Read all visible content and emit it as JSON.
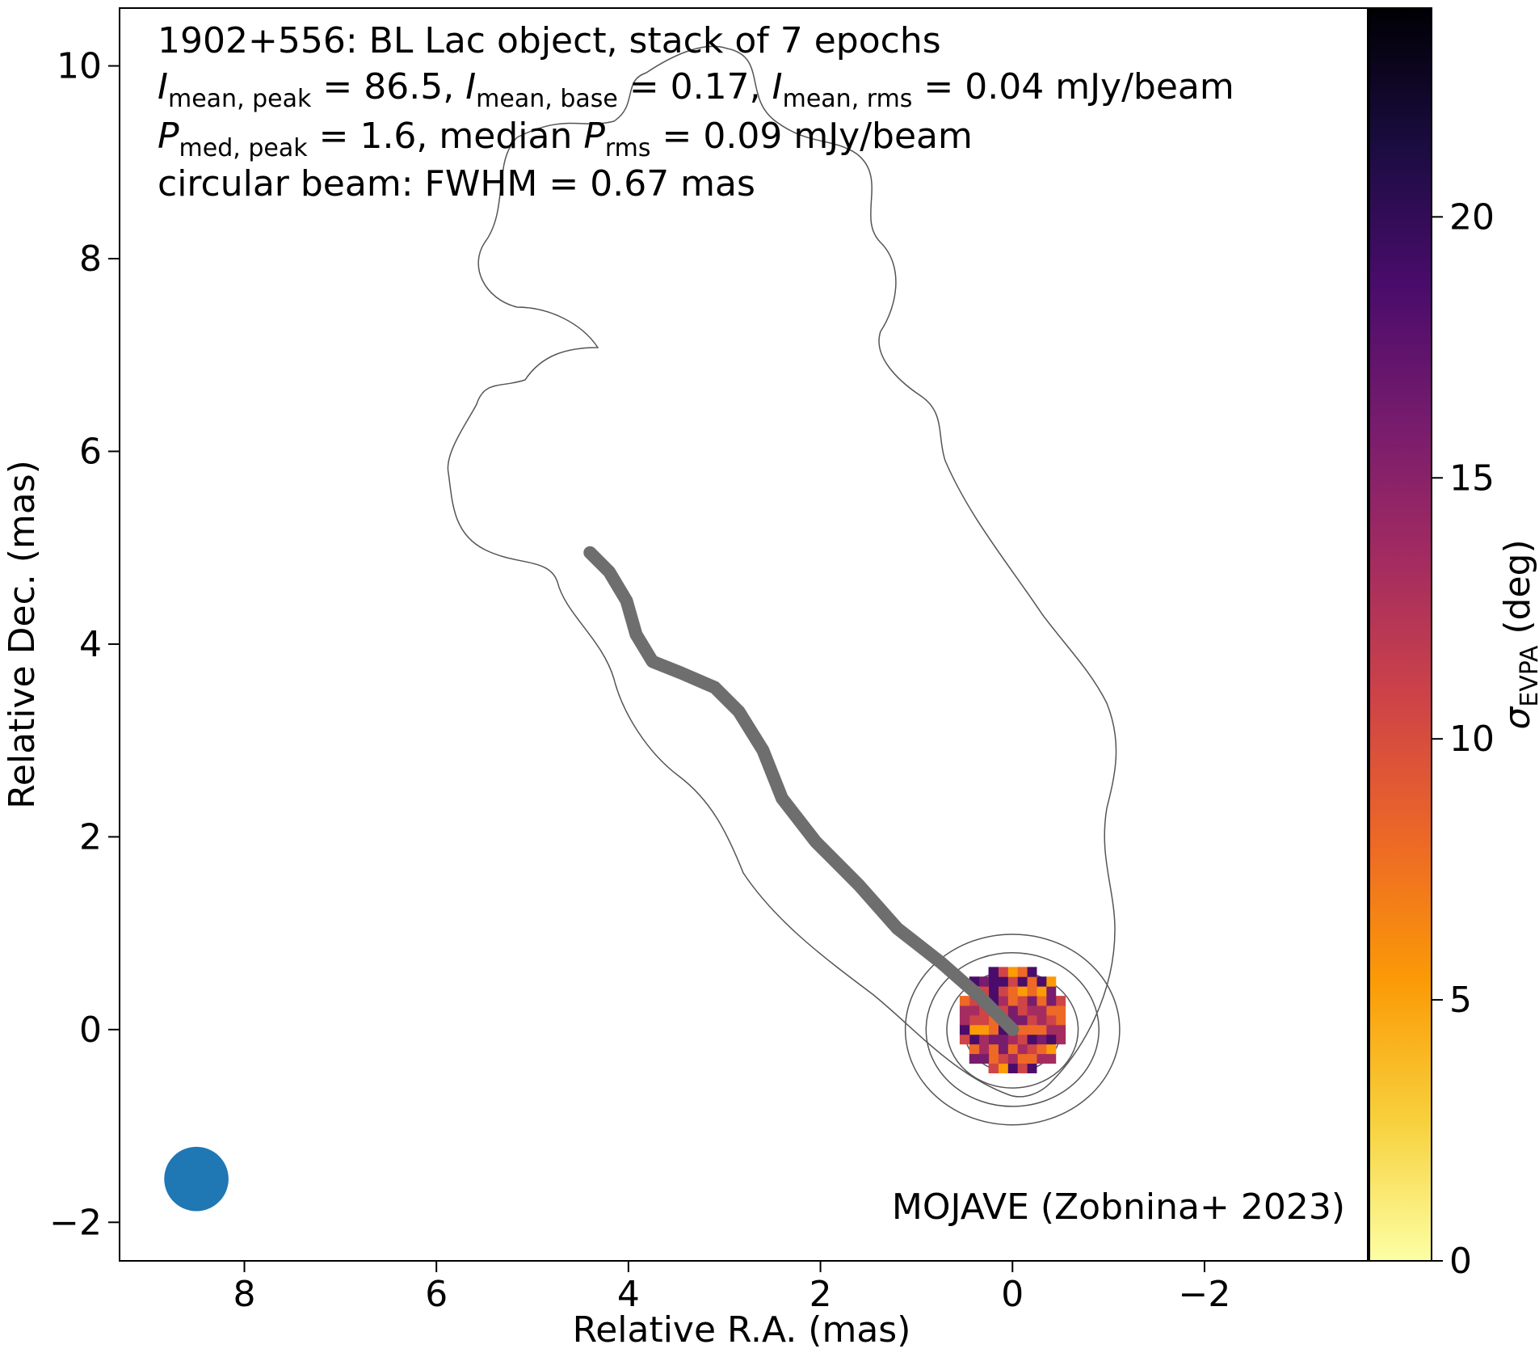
{
  "chart_data": {
    "type": "heatmap",
    "annotations": {
      "line1": "1902+556: BL Lac object, stack of 7 epochs",
      "line2_parts": {
        "I": "I",
        "sub_mean_peak": "mean, peak",
        "eq1": " = 86.5, ",
        "sub_mean_base": "mean, base",
        "eq2": " = 0.17, ",
        "sub_mean_rms": "mean, rms",
        "eq3": " = 0.04 mJy/beam"
      },
      "line3_parts": {
        "P": "P",
        "sub_med_peak": "med, peak",
        "eq1": " = 1.6, median ",
        "sub_rms": "rms",
        "eq2": " = 0.09 mJy/beam"
      },
      "line4": "circular beam: FWHM = 0.67 mas",
      "credit": "MOJAVE (Zobnina+ 2023)"
    },
    "xlabel": "Relative R.A. (mas)",
    "ylabel": "Relative Dec. (mas)",
    "colorbar_label": {
      "sigma": "σ",
      "sub": "EVPA",
      "rest": " (deg)"
    },
    "xlim": [
      9.3,
      -3.7
    ],
    "ylim": [
      -2.4,
      10.6
    ],
    "xticks": [
      8,
      6,
      4,
      2,
      0,
      -2
    ],
    "yticks": [
      -2,
      0,
      2,
      4,
      6,
      8,
      10
    ],
    "xtick_labels": [
      "8",
      "6",
      "4",
      "2",
      "0",
      "−2"
    ],
    "ytick_labels": [
      "−2",
      "0",
      "2",
      "4",
      "6",
      "8",
      "10"
    ],
    "colorbar": {
      "min": 0,
      "max": 24,
      "ticks": [
        0,
        5,
        10,
        15,
        20
      ],
      "tick_labels": [
        "0",
        "5",
        "10",
        "15",
        "20"
      ],
      "colormap": "inferno_r",
      "colormap_stops": [
        "#fcffa4",
        "#f7d13d",
        "#fb9b06",
        "#ed6925",
        "#cf4446",
        "#a52c60",
        "#781c6d",
        "#4a0c6b",
        "#1b0c41",
        "#000004"
      ]
    },
    "beam": {
      "ra": 8.5,
      "dec": -1.55,
      "fwhm_mas": 0.67,
      "color": "#1f77b4"
    },
    "ridge_line": {
      "color": "#6e6e6e",
      "points": [
        [
          4.4,
          4.95
        ],
        [
          4.2,
          4.75
        ],
        [
          4.02,
          4.45
        ],
        [
          3.92,
          4.1
        ],
        [
          3.75,
          3.82
        ],
        [
          3.45,
          3.7
        ],
        [
          3.1,
          3.55
        ],
        [
          2.85,
          3.3
        ],
        [
          2.6,
          2.9
        ],
        [
          2.4,
          2.4
        ],
        [
          2.05,
          1.95
        ],
        [
          1.6,
          1.5
        ],
        [
          1.2,
          1.05
        ],
        [
          0.75,
          0.7
        ],
        [
          0.35,
          0.35
        ],
        [
          0.0,
          0.0
        ]
      ]
    },
    "contour_color": "#555555",
    "core_region": {
      "ra_range": [
        -0.6,
        0.5
      ],
      "dec_range": [
        -0.5,
        0.7
      ],
      "sigma_evpa_range": [
        5,
        20
      ]
    }
  }
}
